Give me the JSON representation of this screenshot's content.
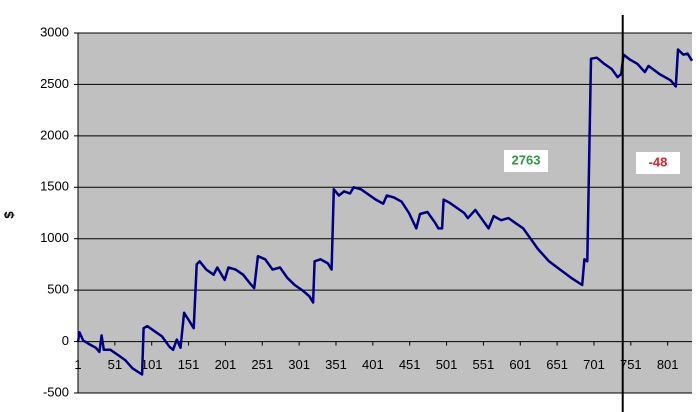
{
  "chart_data": {
    "type": "line",
    "y_label": "$",
    "x": [
      1,
      3,
      8,
      15,
      25,
      30,
      33,
      36,
      45,
      55,
      65,
      75,
      88,
      90,
      95,
      105,
      115,
      125,
      130,
      135,
      140,
      145,
      152,
      158,
      162,
      166,
      175,
      185,
      190,
      200,
      205,
      215,
      225,
      235,
      240,
      245,
      255,
      265,
      275,
      285,
      295,
      305,
      315,
      320,
      322,
      330,
      340,
      345,
      348,
      355,
      362,
      370,
      375,
      385,
      395,
      405,
      415,
      420,
      430,
      440,
      450,
      460,
      465,
      475,
      485,
      490,
      495,
      497,
      505,
      515,
      525,
      530,
      540,
      550,
      558,
      565,
      575,
      585,
      595,
      605,
      615,
      625,
      640,
      655,
      670,
      685,
      688,
      692,
      697,
      705,
      715,
      725,
      733,
      738,
      741,
      750,
      760,
      770,
      775,
      790,
      805,
      812,
      815,
      822,
      828,
      834
    ],
    "values": [
      0,
      90,
      10,
      -20,
      -60,
      -100,
      60,
      -80,
      -80,
      -130,
      -180,
      -260,
      -320,
      130,
      150,
      100,
      50,
      -50,
      -80,
      20,
      -60,
      280,
      200,
      130,
      750,
      780,
      700,
      650,
      720,
      600,
      720,
      700,
      650,
      560,
      520,
      830,
      800,
      700,
      720,
      620,
      550,
      500,
      440,
      380,
      780,
      800,
      760,
      700,
      1480,
      1420,
      1460,
      1440,
      1500,
      1480,
      1430,
      1380,
      1340,
      1420,
      1400,
      1360,
      1250,
      1100,
      1240,
      1260,
      1160,
      1100,
      1100,
      1380,
      1350,
      1300,
      1250,
      1200,
      1280,
      1180,
      1100,
      1220,
      1180,
      1200,
      1150,
      1100,
      1000,
      900,
      780,
      700,
      620,
      550,
      800,
      780,
      2750,
      2760,
      2700,
      2650,
      2570,
      2600,
      2790,
      2740,
      2700,
      2620,
      2680,
      2600,
      2540,
      2480,
      2840,
      2790,
      2800,
      2730
    ],
    "color": "#000080",
    "xlim": [
      1,
      834
    ],
    "xticks": [
      1,
      51,
      101,
      151,
      201,
      251,
      301,
      351,
      401,
      451,
      501,
      551,
      601,
      651,
      701,
      751,
      801
    ],
    "ylim": [
      -500,
      3000
    ],
    "yticks": [
      -500,
      0,
      500,
      1000,
      1500,
      2000,
      2500,
      3000
    ],
    "grid": true,
    "divider_x": 740,
    "annotations": [
      {
        "text": "2763",
        "color": "#2e9b3e"
      },
      {
        "text": "-48",
        "color": "#e0202c"
      }
    ]
  }
}
